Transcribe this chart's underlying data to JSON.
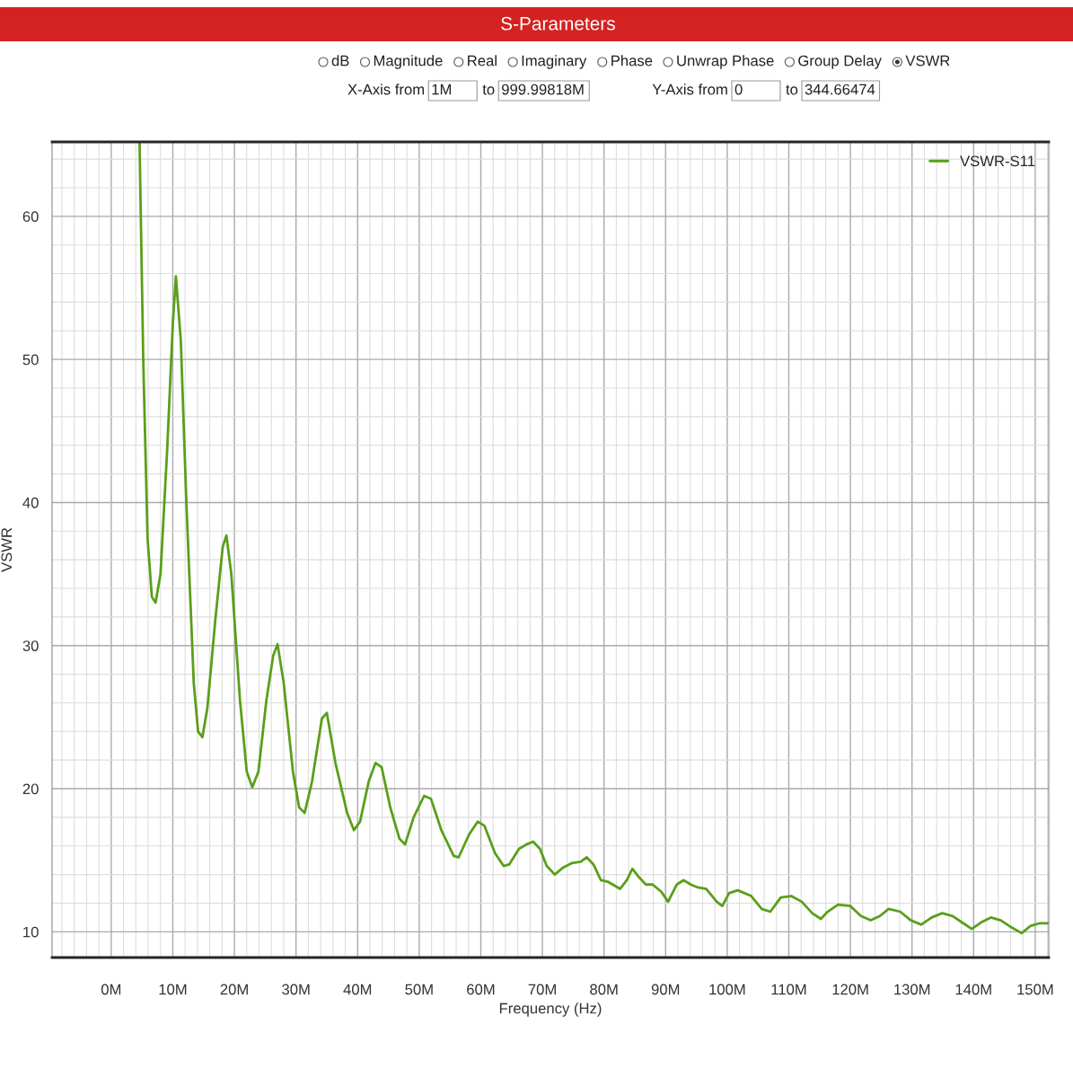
{
  "chart_data": {
    "type": "line",
    "title": "S-Parameters",
    "xlabel": "Frequency (Hz)",
    "ylabel": "VSWR",
    "annotations": [
      "dB",
      "Magnitude",
      "Real",
      "Imaginary",
      "Phase",
      "Unwrap Phase",
      "Group Delay",
      "VSWR",
      "X-Axis from",
      "1M",
      "to",
      "999.99818M",
      "Y-Axis from",
      "0",
      "to",
      "344.66474"
    ],
    "xlim": [
      -9.6,
      152.2
    ],
    "ylim": [
      8.2,
      65.2
    ],
    "xticks": [
      {
        "value": 0,
        "label": "0M"
      },
      {
        "value": 10,
        "label": "10M"
      },
      {
        "value": 20,
        "label": "20M"
      },
      {
        "value": 30,
        "label": "30M"
      },
      {
        "value": 40,
        "label": "40M"
      },
      {
        "value": 50,
        "label": "50M"
      },
      {
        "value": 60,
        "label": "60M"
      },
      {
        "value": 70,
        "label": "70M"
      },
      {
        "value": 80,
        "label": "80M"
      },
      {
        "value": 90,
        "label": "90M"
      },
      {
        "value": 100,
        "label": "100M"
      },
      {
        "value": 110,
        "label": "110M"
      },
      {
        "value": 120,
        "label": "120M"
      },
      {
        "value": 130,
        "label": "130M"
      },
      {
        "value": 140,
        "label": "140M"
      },
      {
        "value": 150,
        "label": "150M"
      }
    ],
    "yticks": [
      10,
      20,
      30,
      40,
      50,
      60
    ],
    "grid": true,
    "legend": "top right",
    "marker": "none",
    "line_style": "solid",
    "series": [
      {
        "name": "VSWR-S11",
        "color": "#5a9e1a",
        "x": [
          4.6,
          5.2,
          5.9,
          6.6,
          7.2,
          8.0,
          9.1,
          10.0,
          10.5,
          11.3,
          12.2,
          13.4,
          14.1,
          14.8,
          15.6,
          16.9,
          18.1,
          18.7,
          19.5,
          20.9,
          22.0,
          22.9,
          23.9,
          25.2,
          26.3,
          27.0,
          28.0,
          29.5,
          30.5,
          31.4,
          32.6,
          34.2,
          35.0,
          36.4,
          38.3,
          39.4,
          40.4,
          41.8,
          42.9,
          43.9,
          45.3,
          46.8,
          47.7,
          49.1,
          50.8,
          51.9,
          53.6,
          55.6,
          56.4,
          58.1,
          59.5,
          60.6,
          62.3,
          63.7,
          64.6,
          66.2,
          67.4,
          68.5,
          69.6,
          70.7,
          72.0,
          73.4,
          74.8,
          76.2,
          77.2,
          78.3,
          79.5,
          80.6,
          82.6,
          83.7,
          84.6,
          85.7,
          86.8,
          87.9,
          89.3,
          90.4,
          91.8,
          92.9,
          94.1,
          95.2,
          96.6,
          98.3,
          99.2,
          100.3,
          101.7,
          103.9,
          105.6,
          107.0,
          108.7,
          110.4,
          112.1,
          113.8,
          115.2,
          116.3,
          118.0,
          120.0,
          121.7,
          123.3,
          124.8,
          126.2,
          128.1,
          129.8,
          131.5,
          133.2,
          134.9,
          136.6,
          138.3,
          139.7,
          141.4,
          142.8,
          144.4,
          145.8,
          147.8,
          149.2,
          150.8,
          152.2
        ],
        "values": [
          65.2,
          50.0,
          37.5,
          33.4,
          33.0,
          35.0,
          43.8,
          52.5,
          55.8,
          51.3,
          40.0,
          27.4,
          24.0,
          23.6,
          25.6,
          31.8,
          36.9,
          37.7,
          35.0,
          26.2,
          21.2,
          20.1,
          21.2,
          26.2,
          29.3,
          30.1,
          27.4,
          21.2,
          18.7,
          18.3,
          20.5,
          24.9,
          25.3,
          21.8,
          18.3,
          17.1,
          17.7,
          20.5,
          21.8,
          21.5,
          18.7,
          16.5,
          16.1,
          18.0,
          19.5,
          19.3,
          17.1,
          15.3,
          15.2,
          16.8,
          17.7,
          17.4,
          15.5,
          14.6,
          14.7,
          15.8,
          16.1,
          16.3,
          15.8,
          14.6,
          14.0,
          14.5,
          14.8,
          14.9,
          15.2,
          14.7,
          13.6,
          13.5,
          13.0,
          13.6,
          14.4,
          13.8,
          13.3,
          13.3,
          12.8,
          12.1,
          13.3,
          13.6,
          13.3,
          13.1,
          13.0,
          12.1,
          11.8,
          12.7,
          12.9,
          12.5,
          11.6,
          11.4,
          12.4,
          12.5,
          12.1,
          11.3,
          10.9,
          11.4,
          11.9,
          11.8,
          11.1,
          10.8,
          11.1,
          11.6,
          11.4,
          10.8,
          10.5,
          11.0,
          11.3,
          11.1,
          10.6,
          10.2,
          10.7,
          11.0,
          10.8,
          10.4,
          9.9,
          10.4,
          10.6,
          10.6
        ]
      }
    ]
  }
}
